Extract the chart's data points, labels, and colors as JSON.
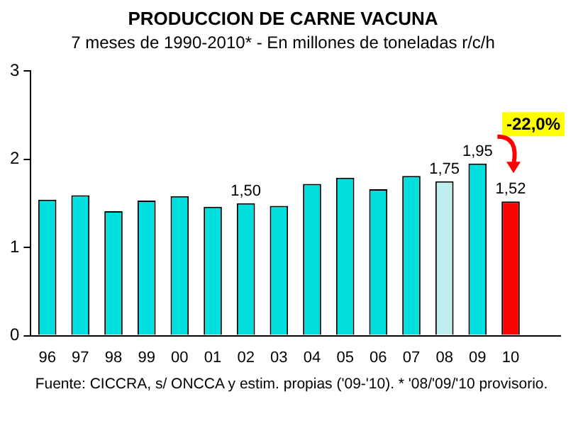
{
  "chart_data": {
    "type": "bar",
    "title": "PRODUCCION DE CARNE VACUNA",
    "subtitle": "7 meses de 1990-2010* - En millones de toneladas r/c/h",
    "categories": [
      "96",
      "97",
      "98",
      "99",
      "00",
      "01",
      "02",
      "03",
      "04",
      "05",
      "06",
      "07",
      "08",
      "09",
      "10",
      null
    ],
    "values": [
      1.54,
      1.59,
      1.41,
      1.53,
      1.58,
      1.46,
      1.5,
      1.47,
      1.72,
      1.79,
      1.66,
      1.81,
      1.75,
      1.95,
      1.52,
      null
    ],
    "colors": [
      "#00dede",
      "#00dede",
      "#00dede",
      "#00dede",
      "#00dede",
      "#00dede",
      "#00dede",
      "#00dede",
      "#00dede",
      "#00dede",
      "#00dede",
      "#00dede",
      "#bfeeee",
      "#00dede",
      "#ff0000",
      null
    ],
    "value_labels": [
      null,
      null,
      null,
      null,
      null,
      null,
      "1,50",
      null,
      null,
      null,
      null,
      null,
      "1,75",
      "1,95",
      "1,52",
      null
    ],
    "ylim": [
      0,
      3
    ],
    "yticks": [
      0,
      1,
      2,
      3
    ],
    "grid": false,
    "legend": false,
    "annotations": [
      "-22,0%",
      "Fuente: CICCRA, s/ ONCCA y estim. propias ('09-'10). * '08/'09/'10 provisorio."
    ]
  }
}
